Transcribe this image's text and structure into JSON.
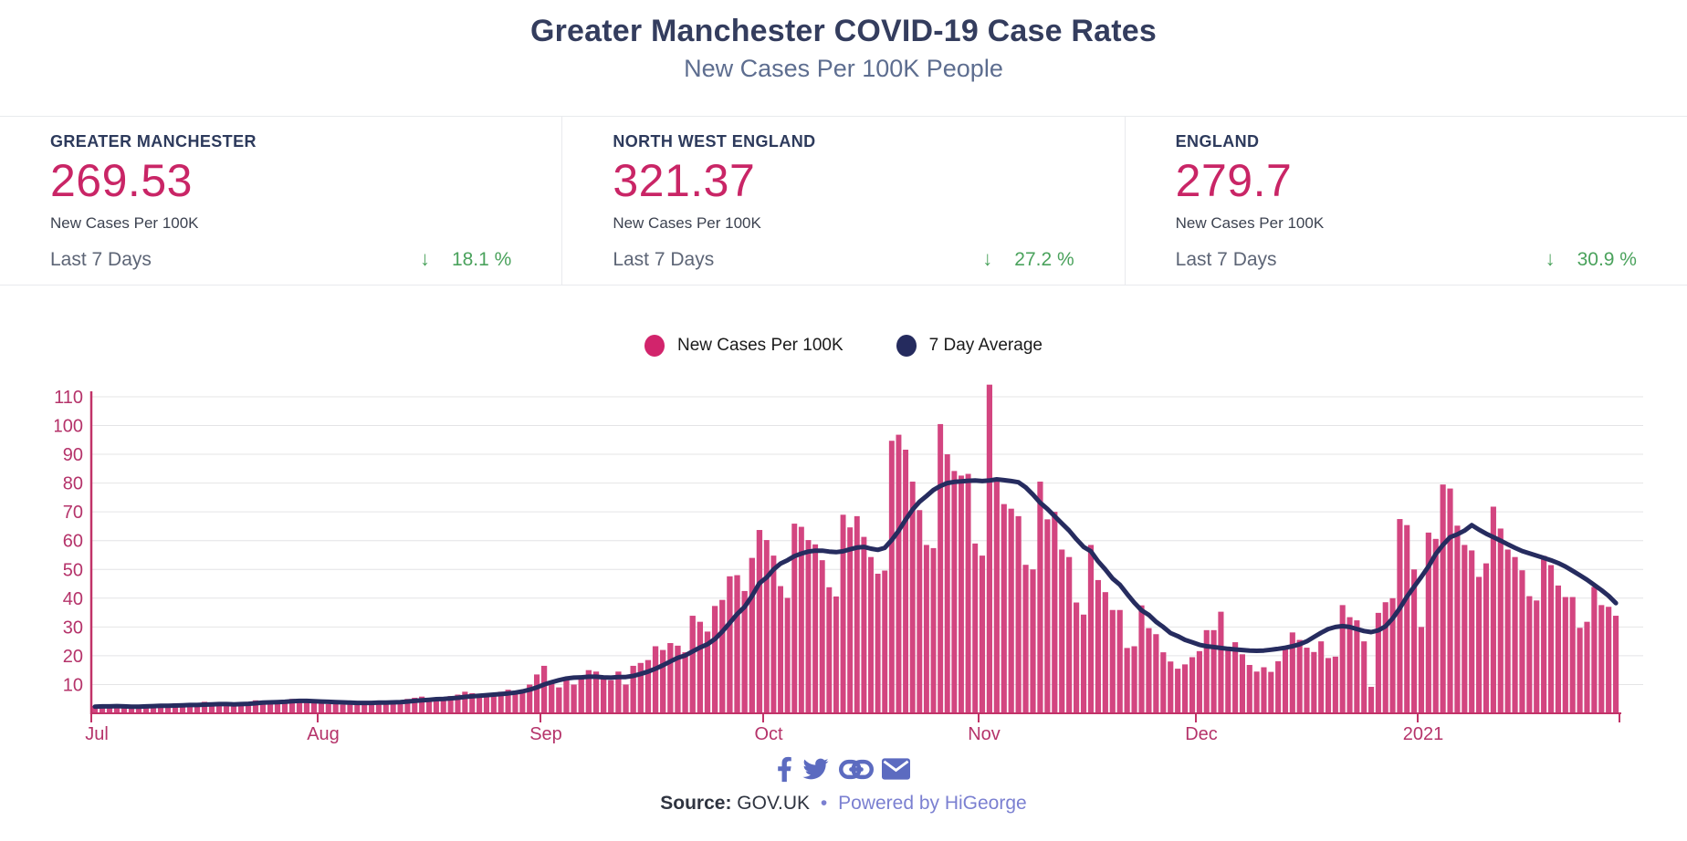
{
  "header": {
    "title": "Greater Manchester COVID-19 Case Rates",
    "subtitle": "New Cases Per 100K People"
  },
  "stat_cards": [
    {
      "region": "GREATER MANCHESTER",
      "value": "269.53",
      "metric_label": "New Cases Per 100K",
      "period_label": "Last 7 Days",
      "direction": "down",
      "direction_icon": "↓",
      "change": "18.1 %"
    },
    {
      "region": "NORTH WEST ENGLAND",
      "value": "321.37",
      "metric_label": "New Cases Per 100K",
      "period_label": "Last 7 Days",
      "direction": "down",
      "direction_icon": "↓",
      "change": "27.2 %"
    },
    {
      "region": "ENGLAND",
      "value": "279.7",
      "metric_label": "New Cases Per 100K",
      "period_label": "Last 7 Days",
      "direction": "down",
      "direction_icon": "↓",
      "change": "30.9 %"
    }
  ],
  "legend": [
    {
      "label": "New Cases Per 100K",
      "color": "#d2246c"
    },
    {
      "label": "7 Day Average",
      "color": "#252b5e"
    }
  ],
  "chart_data": {
    "type": "bar",
    "title": "",
    "xlabel": "",
    "ylabel": "",
    "ylim": [
      0,
      115
    ],
    "y_ticks": [
      10,
      20,
      30,
      40,
      50,
      60,
      70,
      80,
      90,
      100,
      110
    ],
    "grid": true,
    "legend_position": "top-center",
    "months": [
      {
        "label": "Jul",
        "days": 31
      },
      {
        "label": "Aug",
        "days": 31
      },
      {
        "label": "Sep",
        "days": 30
      },
      {
        "label": "Oct",
        "days": 31
      },
      {
        "label": "Nov",
        "days": 30
      },
      {
        "label": "Dec",
        "days": 31
      },
      {
        "label": "2021",
        "days": 28
      }
    ],
    "series": [
      {
        "name": "New Cases Per 100K",
        "type": "bar",
        "color": "#d34580",
        "values": [
          2.5,
          2,
          3,
          2.5,
          2,
          1.8,
          2.2,
          3,
          2.8,
          2.5,
          3,
          3.5,
          2.5,
          3,
          3.5,
          4,
          3.5,
          3,
          2.5,
          3,
          3.5,
          4,
          4.5,
          4,
          3.5,
          4,
          4.5,
          5,
          4.5,
          4,
          4.5,
          4,
          3.2,
          3.5,
          3,
          3.3,
          3.6,
          4,
          4.2,
          3.8,
          3.5,
          4,
          4.5,
          5,
          5.4,
          5.8,
          5.2,
          4.8,
          5.4,
          6,
          6.5,
          7.5,
          7,
          6.5,
          6,
          6.8,
          7.5,
          8.2,
          7.8,
          8,
          10,
          13.5,
          16.5,
          11,
          9,
          11.5,
          10,
          13,
          15,
          14.5,
          12,
          11.5,
          14.5,
          10,
          16.5,
          17.5,
          18.5,
          23.3,
          22,
          24.4,
          23.5,
          21.2,
          33.9,
          31.8,
          28.4,
          37.3,
          39.4,
          47.6,
          48,
          42.5,
          54,
          63.7,
          60.2,
          54.8,
          44.2,
          40.1,
          65.9,
          64.8,
          60.2,
          58.7,
          53.2,
          43.8,
          40.6,
          69,
          64.6,
          68.5,
          61.3,
          54.3,
          48.5,
          49.6,
          94.7,
          96.8,
          91.6,
          80.5,
          70.6,
          58.5,
          57.4,
          100.5,
          90,
          84.2,
          82.6,
          83.2,
          59,
          54.8,
          114.2,
          81.6,
          72.7,
          71.1,
          68.5,
          51.6,
          50,
          80.5,
          67.4,
          70,
          56.9,
          54.3,
          38.5,
          34.3,
          58.5,
          46.3,
          42.1,
          35.9,
          35.9,
          22.7,
          23.3,
          37.5,
          29.6,
          27.5,
          21.2,
          18,
          15.5,
          17,
          19.5,
          21.6,
          28.9,
          28.9,
          35.3,
          22.6,
          24.7,
          20.5,
          16.8,
          14.5,
          16,
          14.4,
          18.1,
          23,
          28.1,
          25.5,
          22.8,
          21.3,
          25,
          19.2,
          19.7,
          37.6,
          33.4,
          32.3,
          25,
          9.2,
          34.9,
          38.6,
          40,
          67.5,
          65.4,
          50,
          30,
          62.8,
          60.6,
          79.5,
          78.1,
          65.2,
          58.5,
          56.6,
          47.4,
          52.1,
          71.8,
          64.2,
          56.9,
          54.3,
          49.7,
          40.7,
          39.2,
          54.7,
          51.5,
          44.4,
          40.4,
          40.4,
          29.7,
          31.8,
          43.9,
          37.6,
          37,
          33.9
        ]
      },
      {
        "name": "7 Day Average",
        "type": "line",
        "color": "#262c5f",
        "values": [
          2.3,
          2.4,
          2.4,
          2.5,
          2.4,
          2.3,
          2.3,
          2.4,
          2.5,
          2.6,
          2.6,
          2.7,
          2.8,
          2.9,
          2.9,
          3,
          3.1,
          3.2,
          3.2,
          3.1,
          3.2,
          3.3,
          3.5,
          3.7,
          3.8,
          3.9,
          4,
          4.2,
          4.3,
          4.3,
          4.2,
          4.1,
          4,
          3.9,
          3.8,
          3.7,
          3.6,
          3.6,
          3.6,
          3.7,
          3.7,
          3.8,
          3.9,
          4.1,
          4.3,
          4.5,
          4.7,
          4.9,
          5,
          5.2,
          5.4,
          5.7,
          5.9,
          6.1,
          6.3,
          6.5,
          6.7,
          6.9,
          7.2,
          7.6,
          8.2,
          9,
          10,
          10.8,
          11.5,
          12.1,
          12.4,
          12.5,
          12.7,
          12.7,
          12.5,
          12.4,
          12.6,
          12.6,
          13,
          13.7,
          14.5,
          15.5,
          16.7,
          18,
          19.3,
          20.1,
          21.5,
          22.9,
          24,
          25.8,
          28.4,
          31.4,
          34.5,
          37,
          40.8,
          45.2,
          47.2,
          50,
          52,
          53.2,
          54.6,
          55.5,
          56.2,
          56.5,
          56.5,
          56.2,
          56,
          56.3,
          57,
          57.6,
          57.8,
          57.2,
          56.8,
          57.5,
          60.2,
          63.5,
          67.3,
          70.8,
          73.5,
          75.5,
          77.6,
          79,
          80,
          80.4,
          80.6,
          80.8,
          80.9,
          80.7,
          80.9,
          81.3,
          81,
          80.7,
          80.3,
          78.5,
          76,
          73.2,
          71,
          68.5,
          66,
          63.5,
          60.5,
          57.8,
          56.3,
          52.8,
          50,
          46.8,
          44.7,
          41.5,
          38.4,
          35.8,
          34.2,
          31.8,
          30,
          27.9,
          26.8,
          25.5,
          24.7,
          23.8,
          23.3,
          23,
          22.7,
          22.4,
          22.2,
          22,
          21.8,
          21.7,
          21.8,
          22.1,
          22.4,
          22.8,
          23.3,
          24,
          25,
          26.5,
          28,
          29.3,
          30,
          30.3,
          30,
          29.3,
          28.6,
          28.2,
          28.8,
          30.2,
          33,
          36.5,
          40.5,
          44,
          47.4,
          51,
          55.3,
          58.5,
          61.2,
          62.2,
          63.5,
          65.4,
          63.8,
          62.4,
          61.2,
          60,
          58.7,
          57.5,
          56.4,
          55.6,
          54.8,
          54,
          53.2,
          52.2,
          51,
          49.5,
          48,
          46.4,
          44.6,
          42.8,
          40.8,
          38.3
        ]
      }
    ]
  },
  "social": {
    "icons": [
      "facebook",
      "twitter",
      "link",
      "email"
    ]
  },
  "footer": {
    "source_label": "Source:",
    "source_value": "GOV.UK",
    "separator": "•",
    "powered_by": "Powered by HiGeorge"
  },
  "colors": {
    "title": "#343d5e",
    "subtitle": "#5d6d8f",
    "card-heading": "#2d3a5c",
    "stat-value": "#c92566",
    "metric-label": "#3c4250",
    "period-label": "#5d6576",
    "change": "#4aa25c",
    "bar": "#d34580",
    "avg-line": "#262c5f",
    "axis": "#c13368",
    "tick-label": "#b5336a",
    "icon": "#5c6bc0",
    "footer-text": "#2f3440",
    "powered": "#7b80d1",
    "border": "#e8eaed",
    "grid": "#e4e4e6"
  }
}
